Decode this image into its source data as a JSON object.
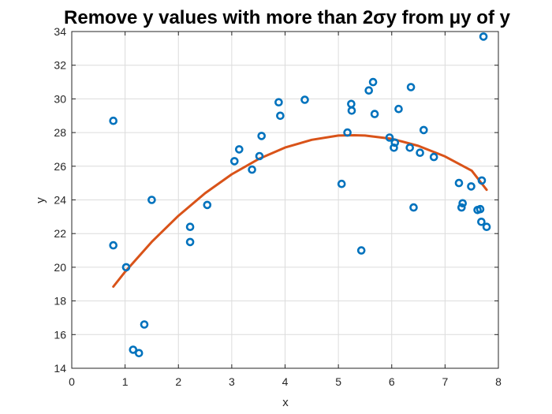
{
  "chart_data": {
    "type": "scatter",
    "title": "Remove y values with more than 2σy from μy of y",
    "xlabel": "x",
    "ylabel": "y",
    "xlim": [
      0,
      8
    ],
    "ylim": [
      14,
      34
    ],
    "xticks": [
      "0",
      "1",
      "2",
      "3",
      "4",
      "5",
      "6",
      "7",
      "8"
    ],
    "yticks": [
      "14",
      "16",
      "18",
      "20",
      "22",
      "24",
      "26",
      "28",
      "30",
      "32",
      "34"
    ],
    "grid": true,
    "legend": "none",
    "series": [
      {
        "kind": "scatter",
        "marker": "circle",
        "color": "#0072BD",
        "points": [
          [
            0.78,
            28.7
          ],
          [
            0.78,
            21.3
          ],
          [
            1.02,
            20.0
          ],
          [
            1.15,
            15.1
          ],
          [
            1.26,
            14.9
          ],
          [
            1.36,
            16.6
          ],
          [
            1.5,
            24.0
          ],
          [
            2.22,
            22.4
          ],
          [
            2.22,
            21.5
          ],
          [
            2.54,
            23.7
          ],
          [
            3.05,
            26.3
          ],
          [
            3.14,
            27.0
          ],
          [
            3.38,
            25.8
          ],
          [
            3.52,
            26.6
          ],
          [
            3.56,
            27.8
          ],
          [
            3.88,
            29.8
          ],
          [
            3.91,
            29.0
          ],
          [
            4.37,
            29.95
          ],
          [
            5.06,
            24.95
          ],
          [
            5.17,
            28.0
          ],
          [
            5.24,
            29.7
          ],
          [
            5.25,
            29.3
          ],
          [
            5.43,
            21.0
          ],
          [
            5.57,
            30.5
          ],
          [
            5.65,
            31.0
          ],
          [
            5.68,
            29.1
          ],
          [
            5.96,
            27.7
          ],
          [
            6.04,
            27.1
          ],
          [
            6.06,
            27.4
          ],
          [
            6.13,
            29.4
          ],
          [
            6.34,
            27.1
          ],
          [
            6.36,
            30.7
          ],
          [
            6.41,
            23.55
          ],
          [
            6.53,
            26.8
          ],
          [
            6.6,
            28.15
          ],
          [
            6.79,
            26.55
          ],
          [
            7.26,
            25.0
          ],
          [
            7.31,
            23.55
          ],
          [
            7.33,
            23.8
          ],
          [
            7.49,
            24.8
          ],
          [
            7.61,
            23.4
          ],
          [
            7.66,
            23.45
          ],
          [
            7.68,
            22.7
          ],
          [
            7.69,
            25.15
          ],
          [
            7.72,
            33.7
          ],
          [
            7.78,
            22.4
          ]
        ]
      },
      {
        "kind": "line",
        "color": "#D95319",
        "x": [
          0.78,
          1.0,
          1.5,
          2.0,
          2.5,
          3.0,
          3.5,
          4.0,
          4.5,
          5.0,
          5.3,
          5.5,
          6.0,
          6.5,
          7.0,
          7.5,
          7.78
        ],
        "y": [
          18.85,
          19.73,
          21.51,
          23.06,
          24.4,
          25.52,
          26.42,
          27.11,
          27.57,
          27.82,
          27.84,
          27.82,
          27.63,
          27.21,
          26.58,
          25.74,
          24.6
        ]
      }
    ]
  }
}
